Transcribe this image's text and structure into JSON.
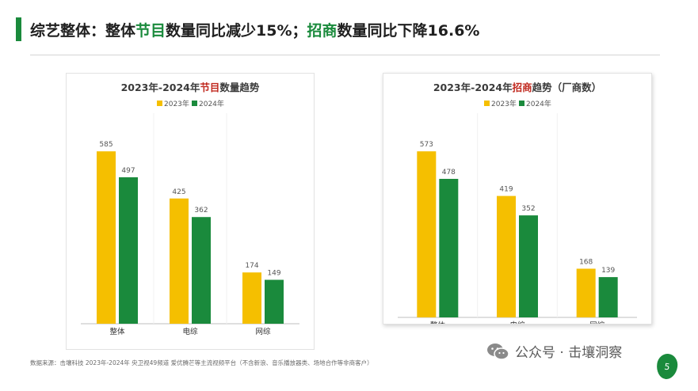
{
  "header": {
    "title_part1": "综艺整体：整体",
    "title_part2": "节目",
    "title_part3": "数量同比减少15%；",
    "title_part4": "招商",
    "title_part5": "数量同比下降16.6%"
  },
  "colors": {
    "accent_green": "#1a8a3c",
    "series_2023": "#f5bf00",
    "series_2024": "#1a8a3c",
    "highlight_red": "#c0281e"
  },
  "chart_data": [
    {
      "type": "bar",
      "title_prefix": "2023年-2024年",
      "title_highlight": "节目",
      "title_suffix": "数量趋势",
      "categories": [
        "整体",
        "电综",
        "网综"
      ],
      "series": [
        {
          "name": "2023年",
          "values": [
            585,
            425,
            174
          ]
        },
        {
          "name": "2024年",
          "values": [
            497,
            362,
            149
          ]
        }
      ],
      "ylim": [
        0,
        650
      ],
      "legend_position": "top-center",
      "grid": false
    },
    {
      "type": "bar",
      "title_prefix": "2023年-2024年",
      "title_highlight": "招商",
      "title_suffix": "趋势（厂商数）",
      "categories": [
        "整体",
        "电综",
        "网综"
      ],
      "series": [
        {
          "name": "2023年",
          "values": [
            573,
            419,
            168
          ]
        },
        {
          "name": "2024年",
          "values": [
            478,
            352,
            139
          ]
        }
      ],
      "ylim": [
        0,
        650
      ],
      "legend_position": "top-center",
      "grid": false
    }
  ],
  "footer": {
    "source": "数据来源：击壤科技 2023年-2024年 央卫视49频道  爱优腾芒等主流视频平台（不含新浪、音乐播放器类、场地合作等非商客户）",
    "wechat_label": "公众号 · 击壤洞察",
    "page_number": "5"
  }
}
